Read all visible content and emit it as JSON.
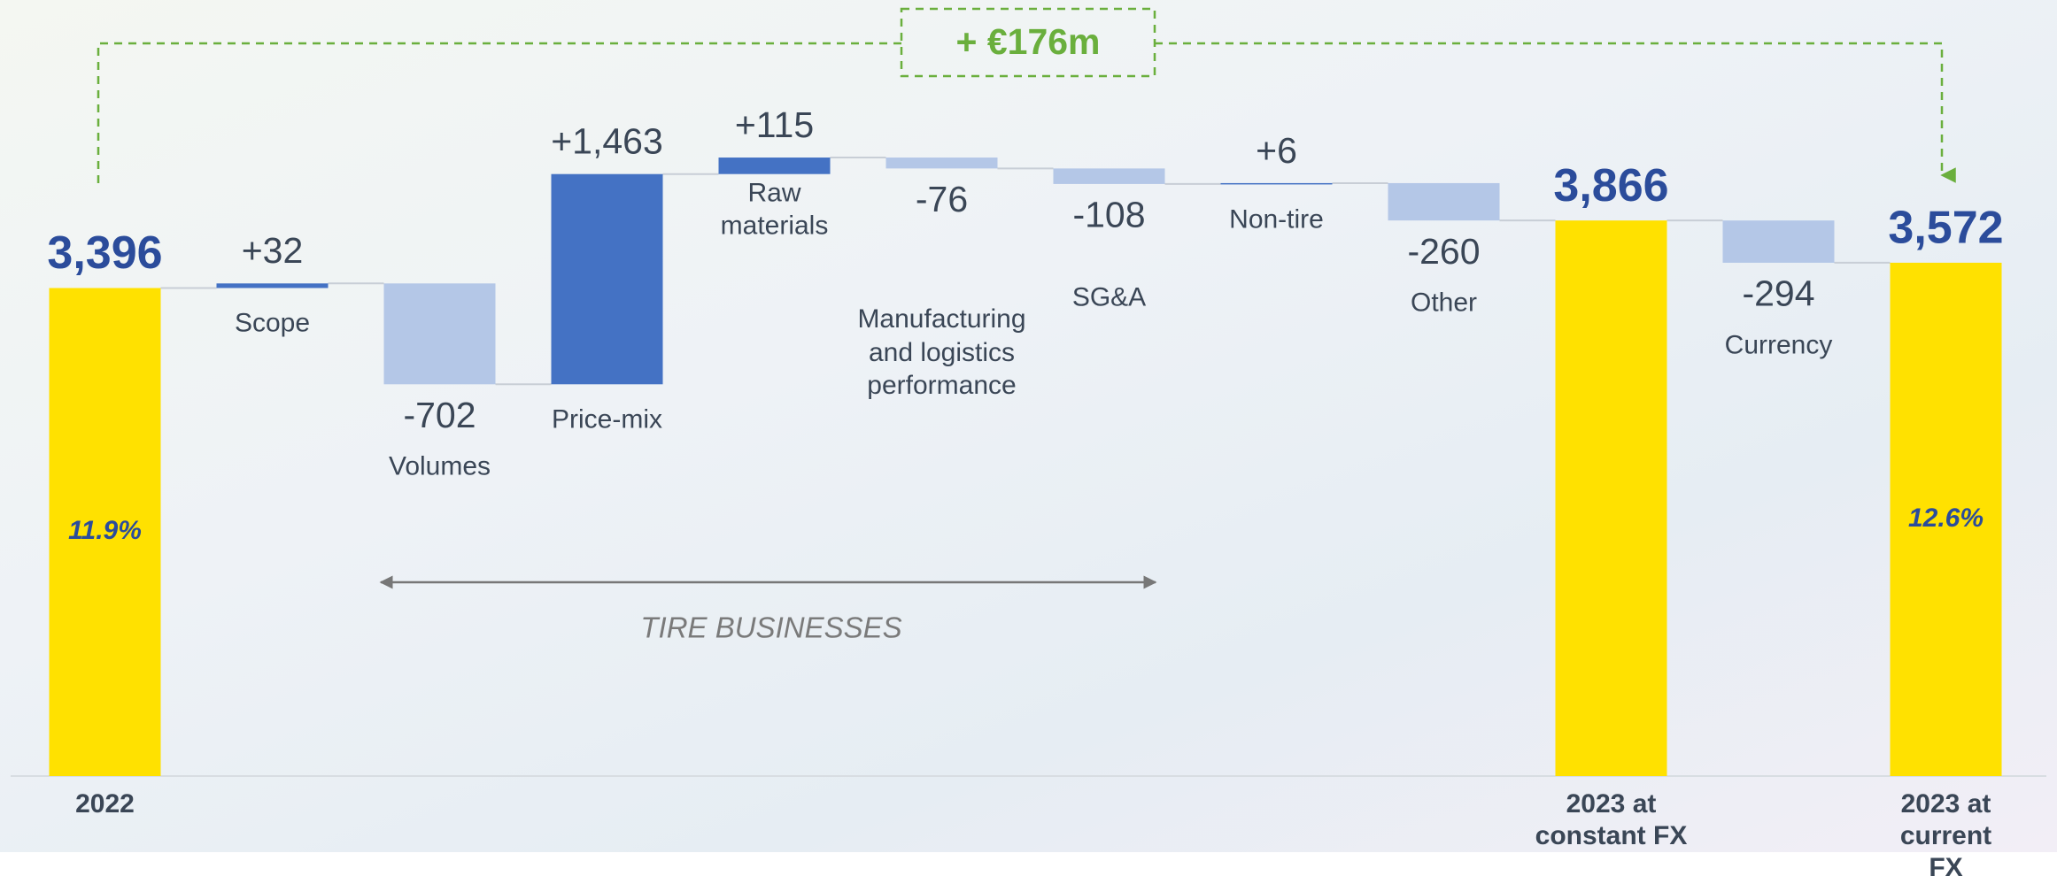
{
  "chart_data": {
    "type": "waterfall",
    "categories": [
      "2022",
      "Scope",
      "Volumes",
      "Price-mix",
      "Raw\nmaterials",
      "Manufacturing\nand logistics\nperformance",
      "SG&A",
      "Non-tire",
      "Other",
      "2023 at\nconstant FX",
      "Currency",
      "2023 at\ncurrent FX"
    ],
    "measures": [
      "absolute",
      "relative",
      "relative",
      "relative",
      "relative",
      "relative",
      "relative",
      "relative",
      "relative",
      "absolute",
      "relative",
      "absolute"
    ],
    "values": [
      3396,
      32,
      -702,
      1463,
      115,
      -76,
      -108,
      6,
      -260,
      3866,
      -294,
      3572
    ],
    "value_labels": [
      "3,396",
      "+32",
      "-702",
      "+1,463",
      "+115",
      "-76",
      "-108",
      "+6",
      "-260",
      "3,866",
      "-294",
      "3,572"
    ],
    "inner_labels": [
      "11.9%",
      null,
      null,
      null,
      null,
      null,
      null,
      null,
      null,
      null,
      null,
      "12.6%"
    ],
    "colors": {
      "total": "#ffe100",
      "increase": "#4472c4",
      "decrease": "#b4c7e7"
    },
    "ylim": [
      0,
      5000
    ],
    "annotations": [
      "+ €176m",
      "TIRE BUSINESSES"
    ]
  }
}
